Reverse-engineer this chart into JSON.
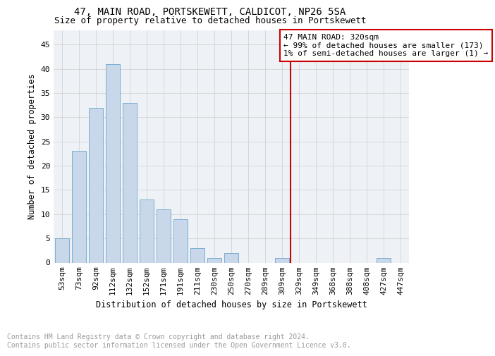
{
  "title": "47, MAIN ROAD, PORTSKEWETT, CALDICOT, NP26 5SA",
  "subtitle": "Size of property relative to detached houses in Portskewett",
  "xlabel": "Distribution of detached houses by size in Portskewett",
  "ylabel": "Number of detached properties",
  "footnote": "Contains HM Land Registry data © Crown copyright and database right 2024.\nContains public sector information licensed under the Open Government Licence v3.0.",
  "categories": [
    "53sqm",
    "73sqm",
    "92sqm",
    "112sqm",
    "132sqm",
    "152sqm",
    "171sqm",
    "191sqm",
    "211sqm",
    "230sqm",
    "250sqm",
    "270sqm",
    "289sqm",
    "309sqm",
    "329sqm",
    "349sqm",
    "368sqm",
    "388sqm",
    "408sqm",
    "427sqm",
    "447sqm"
  ],
  "values": [
    5,
    23,
    32,
    41,
    33,
    13,
    11,
    9,
    3,
    1,
    2,
    0,
    0,
    1,
    0,
    0,
    0,
    0,
    0,
    1,
    0
  ],
  "bar_color": "#c8d8ea",
  "bar_edge_color": "#7aaed0",
  "vline_x_index": 13.5,
  "vline_color": "#cc0000",
  "annotation_text": "47 MAIN ROAD: 320sqm\n← 99% of detached houses are smaller (173)\n1% of semi-detached houses are larger (1) →",
  "annotation_box_color": "#ffffff",
  "annotation_box_edge": "#cc0000",
  "ylim": [
    0,
    48
  ],
  "yticks": [
    0,
    5,
    10,
    15,
    20,
    25,
    30,
    35,
    40,
    45
  ],
  "grid_color": "#cccccc",
  "plot_bg_color": "#eef2f7",
  "fig_bg_color": "#ffffff",
  "title_fontsize": 10,
  "subtitle_fontsize": 9,
  "axis_label_fontsize": 8.5,
  "tick_fontsize": 8,
  "footnote_fontsize": 7,
  "footnote_color": "#999999",
  "annotation_fontsize": 8
}
